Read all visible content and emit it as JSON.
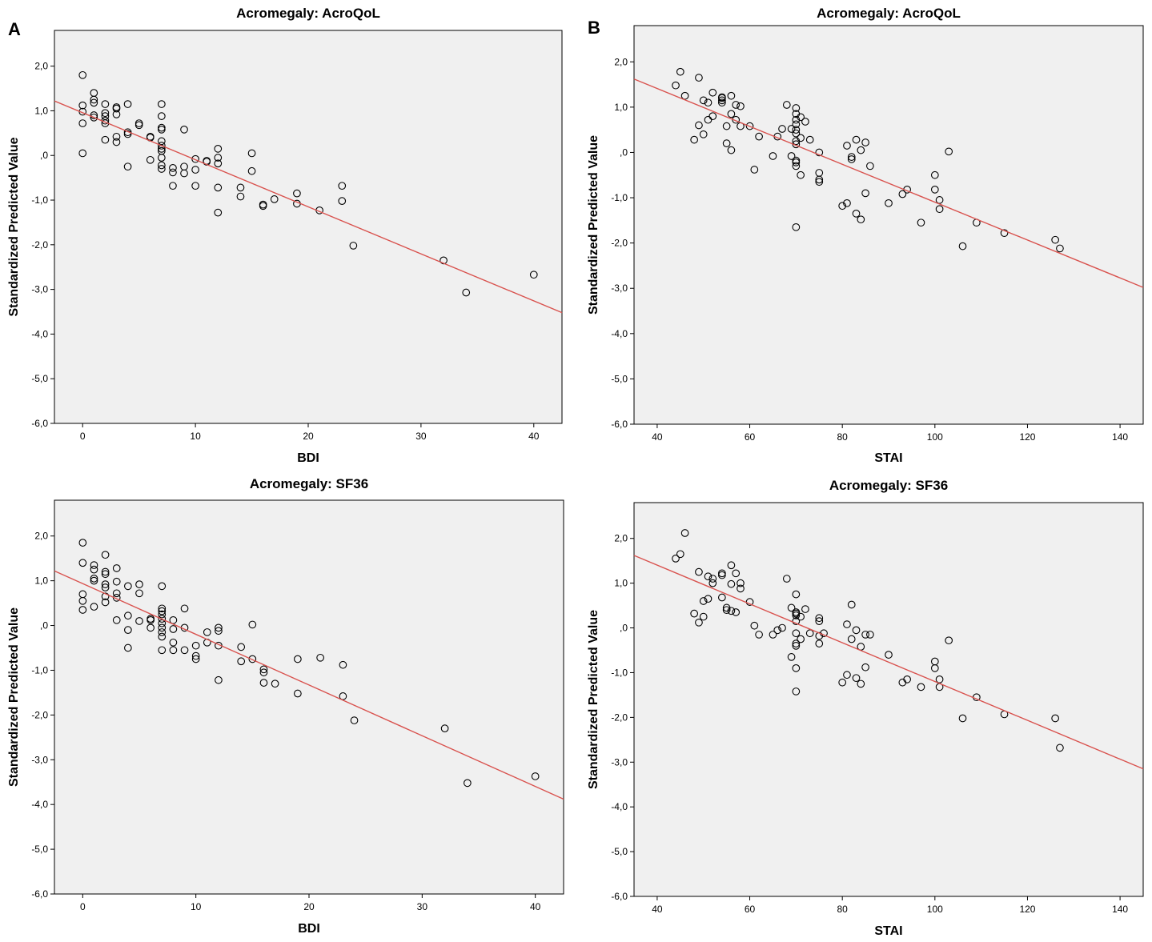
{
  "panel_labels": [
    "A",
    "B"
  ],
  "colors": {
    "plot_bg": "#f0f0f0",
    "fit_line": "#d9534f",
    "marker": "#000000",
    "frame": "#000000"
  },
  "chart_data": [
    {
      "type": "scatter",
      "title": "Acromegaly: AcroQoL",
      "xlabel": "BDI",
      "ylabel": "Standardized Predicted Value",
      "xlim": [
        -2.5,
        42.5
      ],
      "ylim": [
        -6.0,
        2.8
      ],
      "xticks": [
        0,
        10,
        20,
        30,
        40
      ],
      "xtick_labels": [
        "0",
        "10",
        "20",
        "30",
        "40"
      ],
      "yticks": [
        2,
        1,
        0,
        -1,
        -2,
        -3,
        -4,
        -5,
        -6
      ],
      "ytick_labels": [
        "2,0",
        "1,0",
        ",0",
        "-1,0",
        "-2,0",
        "-3,0",
        "-4,0",
        "-5,0",
        "-6,0"
      ],
      "fit_line": {
        "x": [
          -2.5,
          42.5
        ],
        "y": [
          1.22,
          -3.52
        ]
      },
      "points": [
        [
          0,
          1.8
        ],
        [
          0,
          1.12
        ],
        [
          0,
          0.98
        ],
        [
          0,
          0.72
        ],
        [
          0,
          0.05
        ],
        [
          1,
          1.4
        ],
        [
          1,
          1.25
        ],
        [
          1,
          1.18
        ],
        [
          1,
          0.9
        ],
        [
          1,
          0.85
        ],
        [
          2,
          1.15
        ],
        [
          2,
          0.95
        ],
        [
          2,
          0.88
        ],
        [
          2,
          0.78
        ],
        [
          2,
          0.72
        ],
        [
          2,
          0.35
        ],
        [
          3,
          1.08
        ],
        [
          3,
          1.05
        ],
        [
          3,
          0.92
        ],
        [
          3,
          0.42
        ],
        [
          3,
          0.3
        ],
        [
          4,
          1.15
        ],
        [
          4,
          0.52
        ],
        [
          4,
          0.48
        ],
        [
          4,
          -0.25
        ],
        [
          5,
          0.72
        ],
        [
          5,
          0.68
        ],
        [
          6,
          0.42
        ],
        [
          6,
          0.4
        ],
        [
          6,
          -0.1
        ],
        [
          7,
          1.15
        ],
        [
          7,
          0.88
        ],
        [
          7,
          0.62
        ],
        [
          7,
          0.58
        ],
        [
          7,
          0.32
        ],
        [
          7,
          0.22
        ],
        [
          7,
          0.15
        ],
        [
          7,
          0.1
        ],
        [
          7,
          -0.05
        ],
        [
          7,
          -0.22
        ],
        [
          7,
          -0.3
        ],
        [
          8,
          -0.28
        ],
        [
          8,
          -0.38
        ],
        [
          8,
          -0.68
        ],
        [
          9,
          0.58
        ],
        [
          9,
          -0.25
        ],
        [
          9,
          -0.4
        ],
        [
          10,
          -0.08
        ],
        [
          10,
          -0.32
        ],
        [
          10,
          -0.68
        ],
        [
          11,
          -0.12
        ],
        [
          11,
          -0.14
        ],
        [
          12,
          0.15
        ],
        [
          12,
          -0.05
        ],
        [
          12,
          -0.18
        ],
        [
          12,
          -0.72
        ],
        [
          12,
          -1.28
        ],
        [
          14,
          -0.72
        ],
        [
          14,
          -0.92
        ],
        [
          15,
          0.05
        ],
        [
          15,
          -0.35
        ],
        [
          16,
          -1.1
        ],
        [
          16,
          -1.13
        ],
        [
          17,
          -0.98
        ],
        [
          19,
          -0.85
        ],
        [
          19,
          -1.08
        ],
        [
          21,
          -1.23
        ],
        [
          23,
          -0.68
        ],
        [
          23,
          -1.02
        ],
        [
          24,
          -2.02
        ],
        [
          32,
          -2.35
        ],
        [
          34,
          -3.07
        ],
        [
          40,
          -2.67
        ]
      ]
    },
    {
      "type": "scatter",
      "title": "Acromegaly: AcroQoL",
      "xlabel": "STAI",
      "ylabel": "Standardized Predicted Value",
      "xlim": [
        35,
        145
      ],
      "ylim": [
        -6.0,
        2.8
      ],
      "xticks": [
        40,
        60,
        80,
        100,
        120,
        140
      ],
      "xtick_labels": [
        "40",
        "60",
        "80",
        "100",
        "120",
        "140"
      ],
      "yticks": [
        2,
        1,
        0,
        -1,
        -2,
        -3,
        -4,
        -5,
        -6
      ],
      "ytick_labels": [
        "2,0",
        "1,0",
        ",0",
        "-1,0",
        "-2,0",
        "-3,0",
        "-4,0",
        "-5,0",
        "-6,0"
      ],
      "fit_line": {
        "x": [
          35,
          145
        ],
        "y": [
          1.62,
          -2.98
        ]
      },
      "points": [
        [
          44,
          1.48
        ],
        [
          45,
          1.78
        ],
        [
          46,
          1.25
        ],
        [
          48,
          0.28
        ],
        [
          49,
          1.65
        ],
        [
          49,
          0.6
        ],
        [
          50,
          1.15
        ],
        [
          50,
          0.4
        ],
        [
          51,
          1.1
        ],
        [
          51,
          0.72
        ],
        [
          52,
          1.32
        ],
        [
          52,
          0.8
        ],
        [
          54,
          1.22
        ],
        [
          54,
          1.2
        ],
        [
          54,
          1.15
        ],
        [
          54,
          1.1
        ],
        [
          55,
          0.58
        ],
        [
          55,
          0.2
        ],
        [
          56,
          1.25
        ],
        [
          56,
          0.85
        ],
        [
          56,
          0.05
        ],
        [
          57,
          1.05
        ],
        [
          57,
          0.72
        ],
        [
          58,
          1.02
        ],
        [
          58,
          0.58
        ],
        [
          60,
          0.58
        ],
        [
          61,
          -0.38
        ],
        [
          62,
          0.35
        ],
        [
          65,
          -0.08
        ],
        [
          66,
          0.35
        ],
        [
          67,
          0.52
        ],
        [
          68,
          1.05
        ],
        [
          69,
          0.52
        ],
        [
          69,
          -0.08
        ],
        [
          70,
          0.98
        ],
        [
          70,
          0.85
        ],
        [
          70,
          0.72
        ],
        [
          70,
          0.62
        ],
        [
          70,
          0.5
        ],
        [
          70,
          0.42
        ],
        [
          70,
          0.25
        ],
        [
          70,
          0.18
        ],
        [
          70,
          -0.18
        ],
        [
          70,
          -0.22
        ],
        [
          70,
          -0.3
        ],
        [
          70,
          -1.65
        ],
        [
          71,
          0.78
        ],
        [
          71,
          0.32
        ],
        [
          71,
          -0.5
        ],
        [
          72,
          0.68
        ],
        [
          73,
          0.28
        ],
        [
          75,
          0.0
        ],
        [
          75,
          -0.45
        ],
        [
          75,
          -0.6
        ],
        [
          75,
          -0.65
        ],
        [
          80,
          -1.18
        ],
        [
          81,
          0.15
        ],
        [
          81,
          -1.12
        ],
        [
          82,
          -0.1
        ],
        [
          82,
          -0.15
        ],
        [
          83,
          0.28
        ],
        [
          83,
          -1.35
        ],
        [
          84,
          0.05
        ],
        [
          84,
          -1.48
        ],
        [
          85,
          0.22
        ],
        [
          85,
          -0.9
        ],
        [
          86,
          -0.3
        ],
        [
          90,
          -1.12
        ],
        [
          93,
          -0.92
        ],
        [
          94,
          -0.82
        ],
        [
          97,
          -1.55
        ],
        [
          100,
          -0.5
        ],
        [
          100,
          -0.82
        ],
        [
          101,
          -1.05
        ],
        [
          101,
          -1.25
        ],
        [
          103,
          0.02
        ],
        [
          106,
          -2.07
        ],
        [
          109,
          -1.55
        ],
        [
          115,
          -1.78
        ],
        [
          126,
          -1.93
        ],
        [
          127,
          -2.12
        ]
      ]
    },
    {
      "type": "scatter",
      "title": "Acromegaly: SF36",
      "xlabel": "BDI",
      "ylabel": "Standardized Predicted Value",
      "xlim": [
        -2.5,
        42.5
      ],
      "ylim": [
        -6.0,
        2.8
      ],
      "xticks": [
        0,
        10,
        20,
        30,
        40
      ],
      "xtick_labels": [
        "0",
        "10",
        "20",
        "30",
        "40"
      ],
      "yticks": [
        2,
        1,
        0,
        -1,
        -2,
        -3,
        -4,
        -5,
        -6
      ],
      "ytick_labels": [
        "2,0",
        "1,0",
        ",0",
        "-1,0",
        "-2,0",
        "-3,0",
        "-4,0",
        "-5,0",
        "-6,0"
      ],
      "fit_line": {
        "x": [
          -2.5,
          42.5
        ],
        "y": [
          1.22,
          -3.88
        ]
      },
      "points": [
        [
          0,
          1.85
        ],
        [
          0,
          1.4
        ],
        [
          0,
          0.7
        ],
        [
          0,
          0.55
        ],
        [
          0,
          0.35
        ],
        [
          1,
          1.35
        ],
        [
          1,
          1.25
        ],
        [
          1,
          1.05
        ],
        [
          1,
          1.0
        ],
        [
          1,
          0.42
        ],
        [
          2,
          1.58
        ],
        [
          2,
          1.2
        ],
        [
          2,
          1.15
        ],
        [
          2,
          0.92
        ],
        [
          2,
          0.85
        ],
        [
          2,
          0.65
        ],
        [
          2,
          0.52
        ],
        [
          3,
          1.28
        ],
        [
          3,
          0.72
        ],
        [
          3,
          0.62
        ],
        [
          3,
          0.98
        ],
        [
          3,
          0.12
        ],
        [
          4,
          0.88
        ],
        [
          4,
          0.22
        ],
        [
          4,
          -0.1
        ],
        [
          4,
          -0.5
        ],
        [
          5,
          0.92
        ],
        [
          5,
          0.72
        ],
        [
          5,
          0.1
        ],
        [
          6,
          0.15
        ],
        [
          6,
          0.12
        ],
        [
          6,
          -0.05
        ],
        [
          7,
          0.88
        ],
        [
          7,
          0.38
        ],
        [
          7,
          0.32
        ],
        [
          7,
          0.25
        ],
        [
          7,
          0.15
        ],
        [
          7,
          0.05
        ],
        [
          7,
          -0.05
        ],
        [
          7,
          -0.15
        ],
        [
          7,
          -0.25
        ],
        [
          7,
          -0.55
        ],
        [
          8,
          0.12
        ],
        [
          8,
          -0.08
        ],
        [
          8,
          -0.38
        ],
        [
          8,
          -0.55
        ],
        [
          9,
          0.38
        ],
        [
          9,
          -0.05
        ],
        [
          9,
          -0.55
        ],
        [
          10,
          -0.45
        ],
        [
          10,
          -0.68
        ],
        [
          10,
          -0.75
        ],
        [
          11,
          -0.15
        ],
        [
          11,
          -0.38
        ],
        [
          12,
          -0.05
        ],
        [
          12,
          -0.12
        ],
        [
          12,
          -0.45
        ],
        [
          12,
          -1.22
        ],
        [
          14,
          -0.48
        ],
        [
          14,
          -0.8
        ],
        [
          15,
          0.02
        ],
        [
          15,
          -0.75
        ],
        [
          16,
          -0.98
        ],
        [
          16,
          -1.05
        ],
        [
          16,
          -1.28
        ],
        [
          17,
          -1.3
        ],
        [
          19,
          -0.75
        ],
        [
          19,
          -1.52
        ],
        [
          21,
          -0.72
        ],
        [
          23,
          -0.88
        ],
        [
          23,
          -1.58
        ],
        [
          24,
          -2.12
        ],
        [
          32,
          -2.3
        ],
        [
          34,
          -3.52
        ],
        [
          40,
          -3.37
        ]
      ]
    },
    {
      "type": "scatter",
      "title": "Acromegaly: SF36",
      "xlabel": "STAI",
      "ylabel": "Standardized Predicted Value",
      "xlim": [
        35,
        145
      ],
      "ylim": [
        -6.0,
        2.8
      ],
      "xticks": [
        40,
        60,
        80,
        100,
        120,
        140
      ],
      "xtick_labels": [
        "40",
        "60",
        "80",
        "100",
        "120",
        "140"
      ],
      "yticks": [
        2,
        1,
        0,
        -1,
        -2,
        -3,
        -4,
        -5,
        -6
      ],
      "ytick_labels": [
        "2,0",
        "1,0",
        ",0",
        "-1,0",
        "-2,0",
        "-3,0",
        "-4,0",
        "-5,0",
        "-6,0"
      ],
      "fit_line": {
        "x": [
          35,
          145
        ],
        "y": [
          1.62,
          -3.15
        ]
      },
      "points": [
        [
          44,
          1.55
        ],
        [
          45,
          1.65
        ],
        [
          46,
          2.12
        ],
        [
          48,
          0.32
        ],
        [
          49,
          1.25
        ],
        [
          49,
          0.12
        ],
        [
          50,
          0.6
        ],
        [
          50,
          0.25
        ],
        [
          51,
          1.15
        ],
        [
          51,
          0.65
        ],
        [
          52,
          1.1
        ],
        [
          52,
          1.0
        ],
        [
          54,
          1.22
        ],
        [
          54,
          1.18
        ],
        [
          54,
          0.68
        ],
        [
          55,
          0.45
        ],
        [
          55,
          0.4
        ],
        [
          56,
          1.4
        ],
        [
          56,
          0.98
        ],
        [
          56,
          0.38
        ],
        [
          57,
          1.22
        ],
        [
          57,
          0.35
        ],
        [
          58,
          1.0
        ],
        [
          58,
          0.88
        ],
        [
          60,
          0.58
        ],
        [
          61,
          0.05
        ],
        [
          62,
          -0.15
        ],
        [
          65,
          -0.15
        ],
        [
          66,
          -0.05
        ],
        [
          67,
          0.0
        ],
        [
          68,
          1.1
        ],
        [
          69,
          0.45
        ],
        [
          69,
          -0.65
        ],
        [
          70,
          0.75
        ],
        [
          70,
          0.35
        ],
        [
          70,
          0.32
        ],
        [
          70,
          0.28
        ],
        [
          70,
          0.15
        ],
        [
          70,
          -0.12
        ],
        [
          70,
          -0.35
        ],
        [
          70,
          -0.4
        ],
        [
          70,
          -0.9
        ],
        [
          70,
          -1.42
        ],
        [
          71,
          0.25
        ],
        [
          71,
          -0.25
        ],
        [
          72,
          0.42
        ],
        [
          73,
          -0.12
        ],
        [
          75,
          0.22
        ],
        [
          75,
          0.15
        ],
        [
          75,
          -0.18
        ],
        [
          75,
          -0.35
        ],
        [
          76,
          -0.12
        ],
        [
          80,
          -1.22
        ],
        [
          81,
          0.08
        ],
        [
          81,
          -1.05
        ],
        [
          82,
          0.52
        ],
        [
          82,
          -0.25
        ],
        [
          83,
          -0.05
        ],
        [
          83,
          -1.12
        ],
        [
          84,
          -0.42
        ],
        [
          84,
          -1.25
        ],
        [
          85,
          -0.15
        ],
        [
          85,
          -0.88
        ],
        [
          86,
          -0.15
        ],
        [
          90,
          -0.6
        ],
        [
          93,
          -1.22
        ],
        [
          94,
          -1.15
        ],
        [
          97,
          -1.32
        ],
        [
          100,
          -0.75
        ],
        [
          100,
          -0.9
        ],
        [
          101,
          -1.15
        ],
        [
          101,
          -1.32
        ],
        [
          103,
          -0.28
        ],
        [
          106,
          -2.02
        ],
        [
          109,
          -1.55
        ],
        [
          115,
          -1.93
        ],
        [
          126,
          -2.02
        ],
        [
          127,
          -2.68
        ]
      ]
    }
  ]
}
